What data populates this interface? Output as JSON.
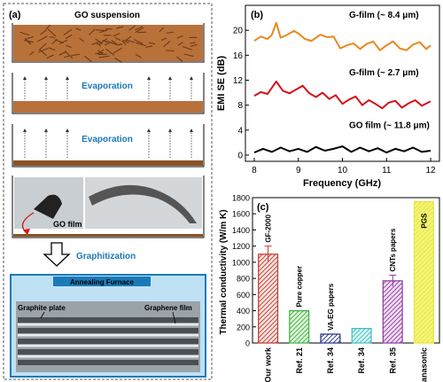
{
  "panel_a": {
    "label": "(a)",
    "stages": [
      {
        "title": "GO suspension"
      },
      {
        "title": "Evaporation"
      },
      {
        "title": "Evaporation"
      }
    ],
    "photo_caption": "GO film",
    "arrow_label": "Graphitization",
    "furnace": {
      "title": "Annealing Furnace",
      "left_label": "Graphite plate",
      "right_label": "Graphene film"
    },
    "colors": {
      "go": "#b9713a",
      "film": "#8a5226",
      "accent": "#1a7ab8",
      "furnace_bg": "#bfe1f4"
    }
  },
  "chart_data": [
    {
      "id": "b",
      "panel_label": "(b)",
      "type": "line",
      "xlabel": "Frequency (GHz)",
      "ylabel": "EMI SE (dB)",
      "xlim": [
        7.8,
        12.2
      ],
      "ylim": [
        -1,
        24
      ],
      "xticks": [
        8,
        9,
        10,
        11,
        12
      ],
      "yticks": [
        0,
        4,
        8,
        12,
        16,
        20
      ],
      "grid": false,
      "series": [
        {
          "name": "G-film (~ 8.4 μm)",
          "color": "#e8891b",
          "x": [
            8.0,
            8.15,
            8.3,
            8.4,
            8.5,
            8.6,
            8.75,
            8.9,
            9.0,
            9.15,
            9.3,
            9.5,
            9.65,
            9.8,
            9.95,
            10.1,
            10.25,
            10.4,
            10.55,
            10.7,
            10.85,
            11.0,
            11.15,
            11.3,
            11.45,
            11.6,
            11.75,
            11.9,
            12.0
          ],
          "y": [
            18.3,
            19.0,
            18.6,
            19.3,
            21.2,
            18.8,
            19.3,
            19.9,
            19.5,
            18.6,
            18.3,
            19.3,
            18.9,
            19.0,
            17.1,
            17.6,
            17.9,
            17.0,
            17.8,
            18.2,
            16.8,
            17.6,
            18.2,
            17.1,
            16.8,
            17.7,
            18.1,
            17.0,
            17.6
          ]
        },
        {
          "name": "G-film (~ 2.7 μm)",
          "color": "#d3121a",
          "x": [
            8.0,
            8.15,
            8.3,
            8.4,
            8.5,
            8.65,
            8.8,
            8.95,
            9.1,
            9.25,
            9.4,
            9.55,
            9.7,
            9.85,
            10.0,
            10.15,
            10.3,
            10.45,
            10.6,
            10.75,
            10.9,
            11.05,
            11.2,
            11.35,
            11.5,
            11.65,
            11.8,
            12.0
          ],
          "y": [
            9.5,
            10.1,
            9.8,
            10.8,
            11.8,
            10.3,
            9.9,
            10.5,
            11.1,
            9.9,
            9.3,
            10.0,
            9.0,
            9.6,
            8.2,
            8.9,
            9.4,
            8.0,
            8.8,
            8.2,
            7.5,
            8.4,
            8.7,
            7.6,
            8.3,
            8.8,
            7.9,
            8.6
          ]
        },
        {
          "name": "GO film (~ 11.8 μm)",
          "color": "#000000",
          "x": [
            8.0,
            8.2,
            8.4,
            8.6,
            8.8,
            9.0,
            9.2,
            9.4,
            9.6,
            9.8,
            10.0,
            10.2,
            10.4,
            10.6,
            10.8,
            11.0,
            11.2,
            11.4,
            11.6,
            11.8,
            12.0
          ],
          "y": [
            0.4,
            1.0,
            0.5,
            1.2,
            0.6,
            1.0,
            0.5,
            1.3,
            0.7,
            1.0,
            1.4,
            0.5,
            1.2,
            0.6,
            1.1,
            0.4,
            1.0,
            0.6,
            1.2,
            0.5,
            0.7
          ]
        }
      ]
    },
    {
      "id": "c",
      "panel_label": "(c)",
      "type": "bar",
      "ylabel": "Thermal conductivity (W/m K)",
      "ylim": [
        0,
        1800
      ],
      "yticks": [
        0,
        200,
        400,
        600,
        800,
        1000,
        1200,
        1400,
        1600,
        1800
      ],
      "grid": false,
      "categories": [
        "Our work",
        "Ref. 21",
        "Ref. 34",
        "Ref. 34",
        "Ref. 35",
        "Panasonic"
      ],
      "values": [
        1100,
        400,
        110,
        180,
        770,
        1750
      ],
      "errors": [
        100,
        0,
        0,
        0,
        70,
        0
      ],
      "annotations": [
        "GF-2000",
        "Pure copper",
        "VA-EG papers",
        "",
        "CNTs papers",
        "PGS"
      ],
      "colors": [
        "#c0392b",
        "#3cb043",
        "#1f2d8a",
        "#3fbfc0",
        "#8e3a9d",
        "#e6e63a"
      ],
      "fills": [
        "#fbe3e0",
        "#dff3d9",
        "#ffffff",
        "#d8f3f3",
        "#f0dcf4",
        "#f4f47a"
      ]
    }
  ]
}
